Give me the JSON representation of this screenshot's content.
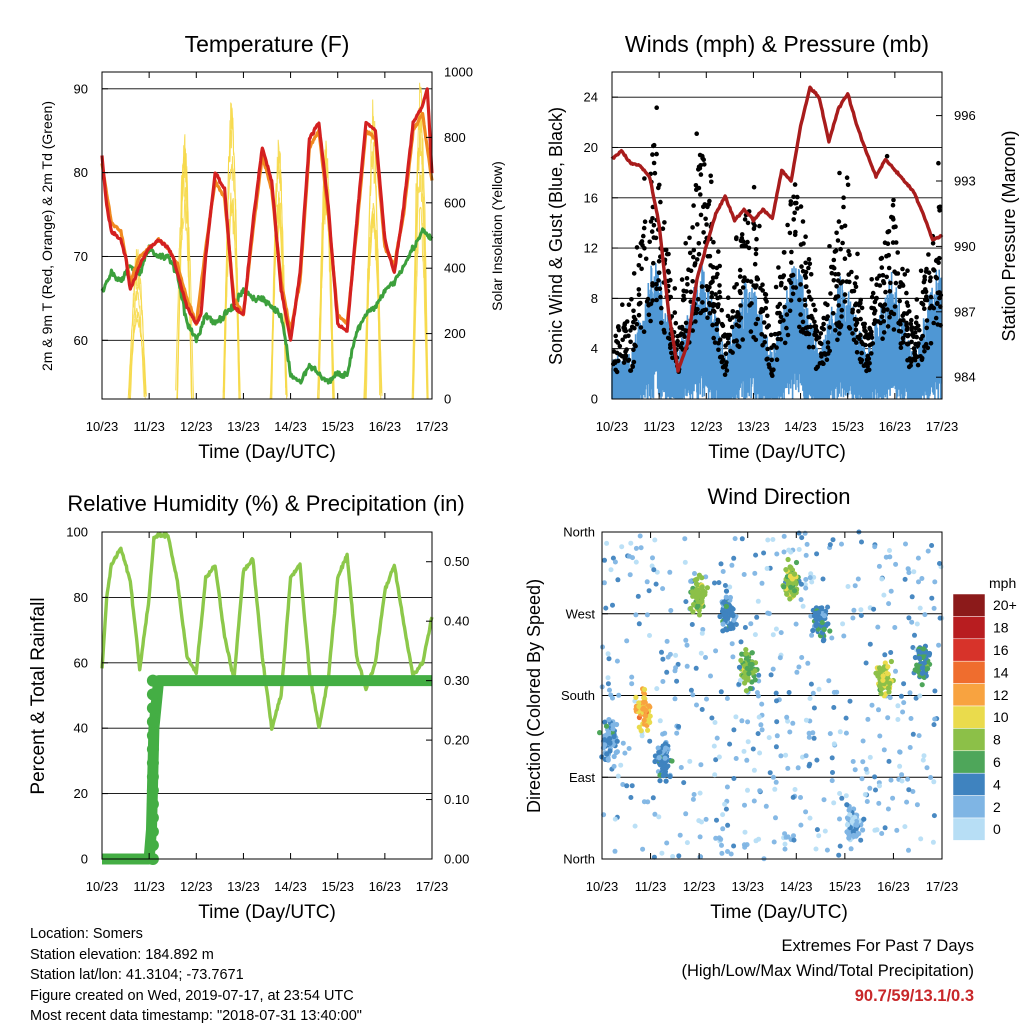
{
  "charts": [
    {
      "title": "Temperature (F)",
      "xlabel": "Time (Day/UTC)",
      "ylabel_left": "2m & 9m T (Red, Orange) & 2m Td (Green)",
      "ylabel_right": "Solar Insolation (Yellow)",
      "x_ticks": [
        "10/23",
        "11/23",
        "12/23",
        "13/23",
        "14/23",
        "15/23",
        "16/23",
        "17/23"
      ],
      "y_ticks_left": [
        "60",
        "70",
        "80",
        "90"
      ],
      "y_ticks_right": [
        "0",
        "200",
        "400",
        "600",
        "800",
        "1000"
      ]
    },
    {
      "title": "Winds (mph) & Pressure (mb)",
      "xlabel": "Time (Day/UTC)",
      "ylabel_left": "Sonic Wind & Gust (Blue, Black)",
      "ylabel_right": "Station Pressure (Maroon)",
      "x_ticks": [
        "10/23",
        "11/23",
        "12/23",
        "13/23",
        "14/23",
        "15/23",
        "16/23",
        "17/23"
      ],
      "y_ticks_left": [
        "0",
        "4",
        "8",
        "12",
        "16",
        "20",
        "24"
      ],
      "y_ticks_right": [
        "984",
        "987",
        "990",
        "993",
        "996"
      ]
    },
    {
      "title": "Relative Humidity (%) & Precipitation (in)",
      "xlabel": "Time (Day/UTC)",
      "ylabel_left": "Percent & Total Rainfall",
      "x_ticks": [
        "10/23",
        "11/23",
        "12/23",
        "13/23",
        "14/23",
        "15/23",
        "16/23",
        "17/23"
      ],
      "y_ticks_left": [
        "0",
        "20",
        "40",
        "60",
        "80",
        "100"
      ],
      "y_ticks_right": [
        "0.00",
        "0.10",
        "0.20",
        "0.30",
        "0.40",
        "0.50"
      ]
    },
    {
      "title": "Wind Direction",
      "xlabel": "Time (Day/UTC)",
      "ylabel_left": "Direction (Colored By Speed)",
      "x_ticks": [
        "10/23",
        "11/23",
        "12/23",
        "13/23",
        "14/23",
        "15/23",
        "16/23",
        "17/23"
      ],
      "y_ticks_left": [
        "North",
        "East",
        "South",
        "West",
        "North"
      ],
      "legend_title": "mph",
      "legend_labels": [
        "20+",
        "18",
        "16",
        "14",
        "12",
        "10",
        "8",
        "6",
        "4",
        "2",
        "0"
      ]
    }
  ],
  "chart_data": [
    {
      "type": "line",
      "x_range_days": [
        0,
        7
      ],
      "ylim_left": [
        53,
        92
      ],
      "ylim_right": [
        0,
        1000
      ],
      "series": [
        {
          "role": "2m T",
          "color": "#d42020",
          "x": [
            0,
            0.1,
            0.2,
            0.4,
            0.5,
            0.6,
            0.8,
            1.0,
            1.2,
            1.4,
            1.5,
            1.6,
            1.8,
            2.0,
            2.1,
            2.2,
            2.4,
            2.6,
            2.8,
            3.0,
            3.2,
            3.4,
            3.6,
            3.8,
            4.0,
            4.2,
            4.4,
            4.6,
            4.8,
            5.0,
            5.2,
            5.4,
            5.6,
            5.8,
            6.0,
            6.2,
            6.4,
            6.6,
            6.8,
            6.9,
            7.0
          ],
          "y": [
            82,
            76,
            73,
            72,
            70,
            66,
            69,
            71,
            72,
            71,
            70,
            68,
            64,
            62,
            63,
            70,
            80,
            78,
            64,
            63,
            74,
            83,
            79,
            66,
            60,
            68,
            84,
            86,
            76,
            62,
            61,
            74,
            86,
            85,
            72,
            68,
            76,
            86,
            88,
            90,
            80
          ]
        },
        {
          "role": "9m T",
          "color": "#f08a20",
          "x": [
            0,
            0.2,
            0.4,
            0.6,
            0.8,
            1.0,
            1.2,
            1.4,
            1.6,
            1.8,
            2.0,
            2.2,
            2.4,
            2.6,
            2.8,
            3.0,
            3.2,
            3.4,
            3.6,
            3.8,
            4.0,
            4.2,
            4.4,
            4.6,
            4.8,
            5.0,
            5.2,
            5.4,
            5.6,
            5.8,
            6.0,
            6.2,
            6.4,
            6.6,
            6.8,
            7.0
          ],
          "y": [
            81,
            74,
            73,
            67,
            70,
            71,
            72,
            71,
            69,
            65,
            62,
            71,
            79,
            77,
            65,
            63,
            73,
            82,
            78,
            67,
            61,
            67,
            83,
            85,
            75,
            63,
            62,
            73,
            85,
            84,
            71,
            69,
            75,
            85,
            87,
            79
          ]
        },
        {
          "role": "2m Td",
          "color": "#3ca03c",
          "x": [
            0,
            0.2,
            0.4,
            0.6,
            0.8,
            1.0,
            1.2,
            1.4,
            1.6,
            1.8,
            2.0,
            2.2,
            2.4,
            2.6,
            2.8,
            3.0,
            3.2,
            3.4,
            3.6,
            3.8,
            4.0,
            4.2,
            4.4,
            4.6,
            4.8,
            5.0,
            5.2,
            5.4,
            5.6,
            5.8,
            6.0,
            6.2,
            6.4,
            6.6,
            6.8,
            7.0
          ],
          "y": [
            66,
            68,
            67,
            69,
            68,
            71,
            70,
            70,
            68,
            62,
            60,
            63,
            62,
            63,
            64,
            66,
            65,
            65,
            64,
            63,
            56,
            55,
            57,
            56,
            55,
            56,
            56,
            61,
            63,
            64,
            66,
            67,
            69,
            71,
            73,
            72
          ]
        },
        {
          "role": "Solar insolation",
          "color": "#f6d94a",
          "axis": "right",
          "daily_peak_hour": 0.75,
          "x": [
            0.75,
            1.75,
            2.75,
            3.75,
            4.75,
            5.75,
            6.75
          ],
          "peaks": [
            480,
            980,
            960,
            850,
            920,
            960,
            990
          ]
        }
      ]
    },
    {
      "type": "scatter",
      "x_range_days": [
        0,
        7
      ],
      "ylim_left": [
        0,
        26
      ],
      "ylim_right": [
        983,
        998
      ],
      "series": [
        {
          "role": "Sonic wind",
          "color": "#4f97d4",
          "x": [
            0.4,
            0.9,
            1.4,
            1.9,
            2.4,
            2.9,
            3.4,
            3.9,
            4.4,
            4.9,
            5.4,
            5.9,
            6.4,
            6.9
          ],
          "y": [
            3,
            10,
            3,
            10,
            3,
            9,
            3,
            10,
            3,
            9,
            3,
            9,
            3,
            9
          ]
        },
        {
          "role": "Gust",
          "color": "#000000",
          "x": [
            0.4,
            0.9,
            1.4,
            1.9,
            2.4,
            2.9,
            3.4,
            3.9,
            4.4,
            4.9,
            5.4,
            5.9,
            6.4,
            6.9
          ],
          "y": [
            6,
            20,
            5,
            20,
            5,
            16,
            5,
            18,
            5,
            16,
            5,
            17,
            5,
            15
          ]
        },
        {
          "role": "Station pressure",
          "color": "#a81c1c",
          "axis": "right",
          "type": "line",
          "x": [
            0,
            0.2,
            0.4,
            0.6,
            0.8,
            1.0,
            1.2,
            1.4,
            1.6,
            1.8,
            2.0,
            2.2,
            2.4,
            2.6,
            2.8,
            3.0,
            3.2,
            3.4,
            3.6,
            3.8,
            4.0,
            4.2,
            4.4,
            4.6,
            4.8,
            5.0,
            5.2,
            5.4,
            5.6,
            5.8,
            6.0,
            6.2,
            6.4,
            6.6,
            6.8,
            7.0
          ],
          "y": [
            994,
            994.4,
            993.8,
            993.7,
            993.2,
            991,
            987,
            984.3,
            985.5,
            988.5,
            990,
            991.5,
            992.3,
            991.2,
            991.7,
            991.2,
            991.7,
            991.3,
            993.5,
            993,
            995.5,
            997.3,
            996.8,
            994.8,
            996.3,
            997,
            995.5,
            994.3,
            993.2,
            994,
            993.5,
            993,
            992.5,
            991.5,
            990.3,
            990.5
          ]
        }
      ]
    },
    {
      "type": "line",
      "x_range_days": [
        0,
        7
      ],
      "ylim_left": [
        0,
        100
      ],
      "ylim_right": [
        0,
        0.55
      ],
      "series": [
        {
          "role": "Relative humidity",
          "color": "#8cc84a",
          "x": [
            0,
            0.1,
            0.2,
            0.4,
            0.6,
            0.8,
            1.0,
            1.1,
            1.2,
            1.4,
            1.6,
            1.8,
            2.0,
            2.2,
            2.4,
            2.6,
            2.8,
            3.0,
            3.2,
            3.4,
            3.6,
            3.8,
            4.0,
            4.2,
            4.4,
            4.6,
            4.8,
            5.0,
            5.2,
            5.4,
            5.6,
            5.8,
            6.0,
            6.2,
            6.4,
            6.6,
            6.8,
            7.0
          ],
          "y": [
            58,
            80,
            90,
            95,
            85,
            58,
            80,
            98,
            99,
            99,
            85,
            62,
            57,
            86,
            90,
            68,
            55,
            88,
            92,
            62,
            40,
            50,
            86,
            90,
            57,
            40,
            55,
            86,
            93,
            62,
            52,
            60,
            82,
            90,
            72,
            56,
            60,
            74
          ]
        },
        {
          "role": "Total rainfall",
          "color": "#44ae44",
          "axis": "right",
          "x": [
            0,
            1.0,
            1.05,
            1.1,
            1.2,
            7.0
          ],
          "y": [
            0,
            0,
            0.05,
            0.22,
            0.3,
            0.3
          ]
        }
      ]
    },
    {
      "type": "scatter",
      "x_range_days": [
        0,
        7
      ],
      "ylim_degrees": [
        0,
        360
      ],
      "y_axis_labels_degrees": [
        0,
        90,
        180,
        270,
        360
      ],
      "color_scale": [
        {
          "label": "20+",
          "color": "#8c1a1a"
        },
        {
          "label": "18",
          "color": "#b81d20"
        },
        {
          "label": "16",
          "color": "#d7332a"
        },
        {
          "label": "14",
          "color": "#ef6d2e"
        },
        {
          "label": "12",
          "color": "#f8a340"
        },
        {
          "label": "10",
          "color": "#eadb4c"
        },
        {
          "label": "8",
          "color": "#8cc048"
        },
        {
          "label": "6",
          "color": "#4ea65a"
        },
        {
          "label": "4",
          "color": "#3f83bf"
        },
        {
          "label": "2",
          "color": "#7fb5e4"
        },
        {
          "label": "0",
          "color": "#b7def5"
        }
      ],
      "clusters": [
        {
          "x": 0.15,
          "dir": 130,
          "speed": 3
        },
        {
          "x": 0.85,
          "dir": 165,
          "speed": 11
        },
        {
          "x": 1.25,
          "dir": 110,
          "speed": 4
        },
        {
          "x": 2.0,
          "dir": 290,
          "speed": 8
        },
        {
          "x": 2.6,
          "dir": 270,
          "speed": 4
        },
        {
          "x": 3.0,
          "dir": 210,
          "speed": 7
        },
        {
          "x": 3.9,
          "dir": 305,
          "speed": 8
        },
        {
          "x": 4.5,
          "dir": 260,
          "speed": 4
        },
        {
          "x": 5.2,
          "dir": 40,
          "speed": 2
        },
        {
          "x": 5.8,
          "dir": 200,
          "speed": 9
        },
        {
          "x": 6.6,
          "dir": 215,
          "speed": 5
        }
      ]
    }
  ],
  "footer": {
    "location": "Location: Somers",
    "elevation": "Station elevation: 184.892 m",
    "latlon": "Station lat/lon: 41.3104; -73.7671",
    "created": "Figure created on Wed, 2019-07-17, at 23:54 UTC",
    "recent": "Most recent data timestamp: \"2018-07-31 13:40:00\""
  },
  "extremes": {
    "title": "Extremes For Past 7 Days",
    "subtitle": "(High/Low/Max Wind/Total Precipitation)",
    "values": "90.7/59/13.1/0.3"
  }
}
